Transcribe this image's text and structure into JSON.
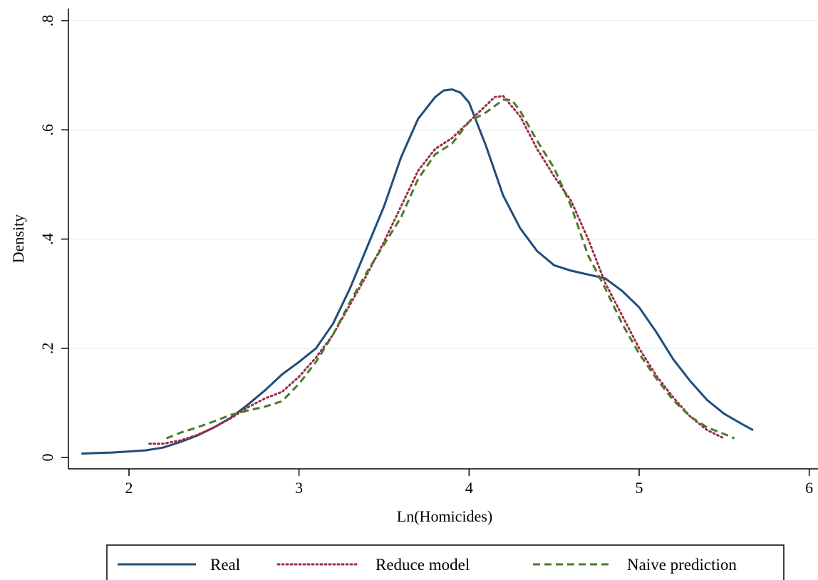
{
  "chart_data": {
    "type": "line",
    "xlabel": "Ln(Homicides)",
    "ylabel": "Density",
    "xlim": [
      1.65,
      6.0
    ],
    "ylim": [
      0,
      0.8
    ],
    "xticks": [
      2,
      3,
      4,
      5,
      6
    ],
    "xtick_labels": [
      "2",
      "3",
      "4",
      "5",
      "6"
    ],
    "yticks": [
      0,
      0.2,
      0.4,
      0.6,
      0.8
    ],
    "ytick_labels": [
      "0",
      ".2",
      ".4",
      ".6",
      ".8"
    ],
    "grid": true,
    "legend_position": "bottom",
    "series": [
      {
        "name": "Real",
        "color": "#1f4e79",
        "style": "solid",
        "x": [
          1.72,
          1.8,
          1.9,
          2.0,
          2.1,
          2.2,
          2.3,
          2.4,
          2.5,
          2.6,
          2.7,
          2.8,
          2.9,
          3.0,
          3.1,
          3.2,
          3.3,
          3.4,
          3.5,
          3.6,
          3.7,
          3.8,
          3.85,
          3.9,
          3.95,
          4.0,
          4.1,
          4.2,
          4.3,
          4.4,
          4.5,
          4.6,
          4.7,
          4.8,
          4.9,
          5.0,
          5.1,
          5.2,
          5.3,
          5.4,
          5.5,
          5.6,
          5.67
        ],
        "y": [
          0.007,
          0.008,
          0.009,
          0.011,
          0.013,
          0.018,
          0.028,
          0.04,
          0.055,
          0.073,
          0.097,
          0.123,
          0.152,
          0.175,
          0.2,
          0.245,
          0.31,
          0.385,
          0.46,
          0.55,
          0.62,
          0.66,
          0.672,
          0.674,
          0.668,
          0.65,
          0.57,
          0.48,
          0.42,
          0.378,
          0.352,
          0.342,
          0.335,
          0.328,
          0.305,
          0.275,
          0.23,
          0.18,
          0.14,
          0.105,
          0.08,
          0.062,
          0.05
        ]
      },
      {
        "name": "Reduce model",
        "color": "#9b2d46",
        "style": "dotted",
        "x": [
          2.12,
          2.2,
          2.3,
          2.4,
          2.5,
          2.6,
          2.7,
          2.8,
          2.9,
          3.0,
          3.1,
          3.2,
          3.3,
          3.4,
          3.5,
          3.6,
          3.7,
          3.8,
          3.9,
          4.0,
          4.1,
          4.15,
          4.2,
          4.3,
          4.4,
          4.5,
          4.6,
          4.7,
          4.8,
          4.9,
          5.0,
          5.1,
          5.2,
          5.3,
          5.4,
          5.5
        ],
        "y": [
          0.025,
          0.025,
          0.031,
          0.041,
          0.055,
          0.072,
          0.092,
          0.108,
          0.12,
          0.148,
          0.183,
          0.225,
          0.28,
          0.335,
          0.395,
          0.46,
          0.525,
          0.565,
          0.585,
          0.615,
          0.645,
          0.66,
          0.662,
          0.625,
          0.565,
          0.515,
          0.47,
          0.4,
          0.32,
          0.26,
          0.2,
          0.15,
          0.11,
          0.075,
          0.05,
          0.035
        ]
      },
      {
        "name": "Naive prediction",
        "color": "#4a7a2c",
        "style": "dashed",
        "x": [
          2.22,
          2.3,
          2.4,
          2.5,
          2.6,
          2.7,
          2.8,
          2.9,
          3.0,
          3.1,
          3.2,
          3.3,
          3.4,
          3.5,
          3.6,
          3.7,
          3.8,
          3.9,
          4.0,
          4.1,
          4.2,
          4.25,
          4.3,
          4.4,
          4.5,
          4.6,
          4.7,
          4.8,
          4.9,
          5.0,
          5.1,
          5.2,
          5.3,
          5.4,
          5.5,
          5.56
        ],
        "y": [
          0.035,
          0.045,
          0.055,
          0.066,
          0.078,
          0.086,
          0.093,
          0.103,
          0.135,
          0.175,
          0.225,
          0.285,
          0.34,
          0.39,
          0.44,
          0.51,
          0.555,
          0.575,
          0.615,
          0.632,
          0.655,
          0.655,
          0.635,
          0.58,
          0.53,
          0.46,
          0.37,
          0.31,
          0.245,
          0.19,
          0.145,
          0.105,
          0.075,
          0.055,
          0.043,
          0.035
        ]
      }
    ]
  }
}
